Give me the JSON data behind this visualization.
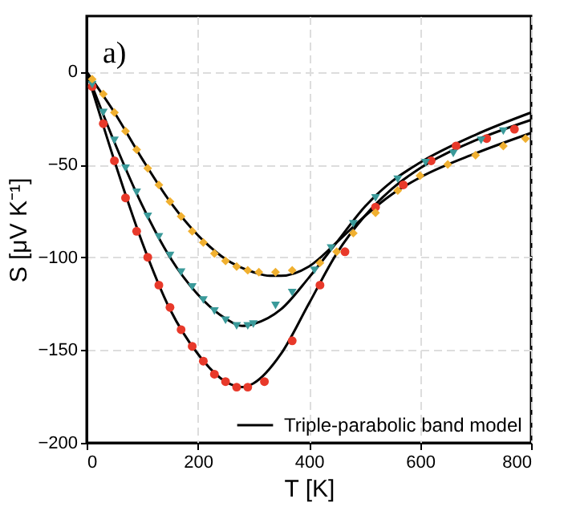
{
  "chart_data": {
    "type": "scatter",
    "xlabel": "T [K]",
    "ylabel": "S [μV K⁻¹]",
    "annotations": [
      "a)"
    ],
    "xlim": [
      0,
      800
    ],
    "ylim": [
      -200,
      30
    ],
    "xticks": [
      0,
      200,
      400,
      600,
      800
    ],
    "yticks": [
      -200,
      -150,
      -100,
      -50,
      0
    ],
    "grid": true,
    "legend": "bottom right",
    "series": [
      {
        "marker": "circle",
        "color": "#e8392a",
        "x": [
          10,
          30,
          50,
          70,
          90,
          110,
          130,
          150,
          170,
          190,
          210,
          230,
          250,
          270,
          290,
          320,
          370,
          420,
          465,
          520,
          570,
          620,
          665,
          720,
          770
        ],
        "values": [
          -8,
          -28,
          -48,
          -68,
          -86,
          -100,
          -115,
          -127,
          -139,
          -148,
          -156,
          -163,
          -167,
          -170,
          -170,
          -167,
          -145,
          -115,
          -97,
          -73,
          -61,
          -48,
          -40,
          -36,
          -31
        ]
      },
      {
        "marker": "triangle",
        "color": "#3a9a9a",
        "x": [
          10,
          30,
          50,
          70,
          90,
          110,
          130,
          150,
          170,
          190,
          210,
          230,
          250,
          270,
          290,
          300,
          340,
          370,
          410,
          440,
          480,
          520,
          560,
          610,
          660,
          710,
          750
        ],
        "values": [
          -7,
          -22,
          -37,
          -52,
          -65,
          -78,
          -89,
          -99,
          -108,
          -116,
          -123,
          -129,
          -134,
          -137,
          -137,
          -136,
          -126,
          -119,
          -107,
          -95,
          -82,
          -68,
          -58,
          -49,
          -44,
          -37,
          -32
        ]
      },
      {
        "marker": "diamond",
        "color": "#f0b030",
        "x": [
          10,
          30,
          50,
          70,
          90,
          110,
          130,
          150,
          170,
          190,
          210,
          230,
          250,
          270,
          290,
          310,
          340,
          370,
          420,
          450,
          480,
          520,
          560,
          600,
          650,
          700,
          750,
          790
        ],
        "values": [
          -4,
          -12,
          -22,
          -32,
          -42,
          -52,
          -61,
          -70,
          -78,
          -86,
          -92,
          -98,
          -102,
          -105,
          -107,
          -108,
          -108,
          -107,
          -103,
          -97,
          -87,
          -76,
          -64,
          -56,
          -50,
          -45,
          -40,
          -36
        ]
      },
      {
        "type": "line",
        "name": "Triple-parabolic band model",
        "color": "#000000",
        "x": [
          0,
          50,
          100,
          150,
          200,
          250,
          280,
          300,
          350,
          400,
          450,
          500,
          550,
          600,
          700,
          800
        ],
        "values": [
          0,
          -48,
          -92,
          -128,
          -152,
          -167,
          -170,
          -168,
          -152,
          -125,
          -98,
          -78,
          -63,
          -52,
          -37,
          -26
        ]
      },
      {
        "type": "line",
        "color": "#000000",
        "x": [
          0,
          50,
          100,
          150,
          200,
          250,
          280,
          300,
          350,
          400,
          450,
          500,
          550,
          600,
          700,
          800
        ],
        "values": [
          0,
          -38,
          -72,
          -100,
          -120,
          -133,
          -137,
          -136,
          -128,
          -111,
          -92,
          -73,
          -59,
          -49,
          -34,
          -22
        ]
      },
      {
        "type": "line",
        "color": "#000000",
        "x": [
          0,
          50,
          100,
          150,
          200,
          250,
          300,
          330,
          350,
          400,
          450,
          500,
          550,
          600,
          700,
          800
        ],
        "values": [
          0,
          -22,
          -47,
          -70,
          -88,
          -101,
          -108,
          -110,
          -110,
          -105,
          -92,
          -78,
          -66,
          -57,
          -44,
          -33
        ]
      }
    ]
  }
}
